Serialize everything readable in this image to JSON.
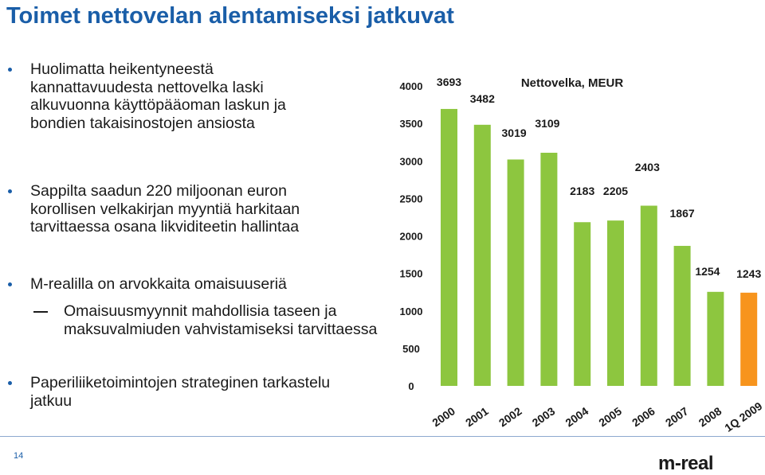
{
  "title": "Toimet nettovelan alentamiseksi jatkuvat",
  "bullets": [
    {
      "lines": [
        "Huolimatta heikentyneestä",
        "kannattavuudesta nettovelka laski",
        "alkuvuonna käyttöpääoman laskun ja",
        "bondien takaisinostojen ansiosta"
      ]
    },
    {
      "lines": [
        "Sappilta saadun 220 miljoonan euron",
        "korollisen velkakirjan myyntiä harkitaan",
        "tarvittaessa osana likviditeetin hallintaa"
      ]
    },
    {
      "lines": [
        "M-realilla on arvokkaita omaisuuseriä"
      ]
    },
    {
      "lines": [
        "Paperiliiketoimintojen strateginen tarkastelu",
        "jatkuu"
      ]
    }
  ],
  "sub_bullet": {
    "lines": [
      "Omaisuusmyynnit mahdollisia taseen ja",
      "maksuvalmiuden vahvistamiseksi tarvittaessa"
    ]
  },
  "page_number": "14",
  "logo_text": "m-real",
  "chart_data": {
    "type": "bar",
    "title": "Nettovelka, MEUR",
    "categories": [
      "2000",
      "2001",
      "2002",
      "2003",
      "2004",
      "2005",
      "2006",
      "2007",
      "2008",
      "1Q 2009"
    ],
    "values": [
      3693,
      3482,
      3019,
      3109,
      2183,
      2205,
      2403,
      1867,
      1254,
      1243
    ],
    "value_labels": [
      "3693",
      "3482",
      "3019",
      "3109",
      "2183",
      "2205",
      "2403",
      "1867",
      "1254",
      "1243"
    ],
    "colors": [
      "#8dc63f",
      "#8dc63f",
      "#8dc63f",
      "#8dc63f",
      "#8dc63f",
      "#8dc63f",
      "#8dc63f",
      "#8dc63f",
      "#8dc63f",
      "#f7941d"
    ],
    "ylim": [
      0,
      4000
    ],
    "yticks": [
      0,
      500,
      1000,
      1500,
      2000,
      2500,
      3000,
      3500,
      4000
    ],
    "ytick_labels": [
      "0",
      "500",
      "1000",
      "1500",
      "2000",
      "2500",
      "3000",
      "3500",
      "4000"
    ],
    "xlabel": "",
    "ylabel": "",
    "grid": false,
    "legend": "none"
  }
}
